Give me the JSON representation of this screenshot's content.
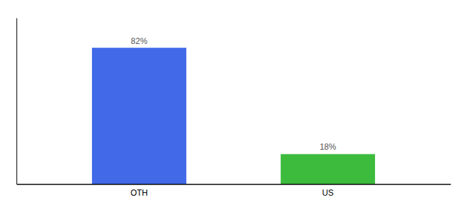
{
  "chart_data": {
    "type": "bar",
    "categories": [
      "OTH",
      "US"
    ],
    "values": [
      82,
      18
    ],
    "value_labels": [
      "82%",
      "18%"
    ],
    "colors": [
      "#4169e8",
      "#3dbb3d"
    ],
    "ylim": [
      0,
      100
    ],
    "data_labels": true,
    "tick_labels": "x"
  }
}
